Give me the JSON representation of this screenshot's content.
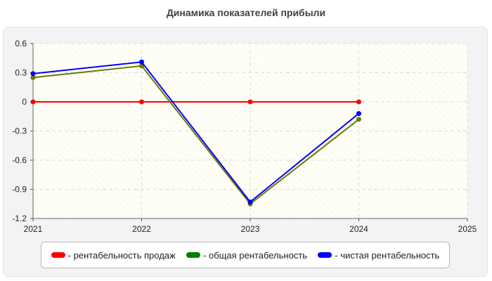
{
  "chart_data": {
    "type": "line",
    "title": "Динамика показателей прибыли",
    "x": [
      2021,
      2022,
      2023,
      2024
    ],
    "xlim": [
      2021,
      2025
    ],
    "xticks": [
      "2021",
      "2022",
      "2023",
      "2024",
      "2025"
    ],
    "ylim": [
      -1.2,
      0.6
    ],
    "yticks": [
      "0.6",
      "0.3",
      "0",
      "-0.3",
      "-0.6",
      "-0.9",
      "-1.2"
    ],
    "grid": true,
    "legend_position": "bottom",
    "series": [
      {
        "name": "- рентабельность продаж",
        "color": "#ff0000",
        "values": [
          0.0,
          0.0,
          0.0,
          0.0
        ]
      },
      {
        "name": "- общая рентабельность",
        "color": "#008000",
        "line_color": "#6b7a00",
        "values": [
          0.25,
          0.37,
          -1.05,
          -0.18
        ]
      },
      {
        "name": "- чистая рентабельность",
        "color": "#0000ff",
        "values": [
          0.29,
          0.41,
          -1.03,
          -0.12
        ]
      }
    ]
  }
}
